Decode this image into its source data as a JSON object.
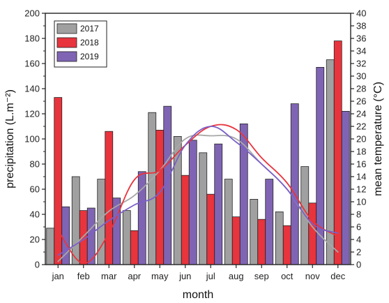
{
  "chart_data": {
    "type": "bar",
    "categories": [
      "jan",
      "feb",
      "mar",
      "apr",
      "may",
      "jun",
      "jul",
      "aug",
      "sep",
      "oct",
      "nov",
      "dec"
    ],
    "xlabel": "month",
    "ylabel": "precipitation (L.m⁻²)",
    "y2label": "mean temperature (°C)",
    "ylim": [
      0,
      200
    ],
    "y2lim": [
      0,
      40
    ],
    "yticks": [
      0,
      20,
      40,
      60,
      80,
      100,
      120,
      140,
      160,
      180,
      200
    ],
    "y2ticks": [
      0,
      2,
      4,
      6,
      8,
      10,
      12,
      14,
      16,
      18,
      20,
      22,
      24,
      26,
      28,
      30,
      32,
      34,
      36,
      38,
      40
    ],
    "legend_position": "top-left",
    "series": [
      {
        "name": "2017",
        "color": "#a0a0a0",
        "values": [
          29,
          70,
          68,
          43,
          121,
          102,
          89,
          68,
          52,
          42,
          78,
          163
        ],
        "temperature": [
          0.5,
          4.5,
          8.5,
          11.0,
          15.0,
          20.0,
          20.5,
          20.0,
          16.0,
          12.0,
          6.0,
          2.0
        ],
        "line_color": "#a8a8a8"
      },
      {
        "name": "2018",
        "color": "#e8343d",
        "values": [
          133,
          43,
          106,
          27,
          107,
          71,
          56,
          38,
          36,
          31,
          49,
          178
        ],
        "temperature": [
          5.5,
          0.2,
          5.0,
          13.5,
          15.0,
          19.0,
          22.0,
          21.5,
          17.0,
          13.0,
          7.0,
          4.5
        ],
        "line_color": "#e8343d"
      },
      {
        "name": "2019",
        "color": "#8064b4",
        "values": [
          46,
          45,
          53,
          74,
          126,
          99,
          96,
          112,
          68,
          128,
          157,
          122
        ],
        "temperature": [
          1.5,
          4.0,
          7.0,
          9.5,
          11.5,
          19.0,
          22.0,
          19.5,
          16.0,
          12.0,
          6.5,
          5.0
        ],
        "line_color": "#7a5fc8"
      }
    ]
  }
}
